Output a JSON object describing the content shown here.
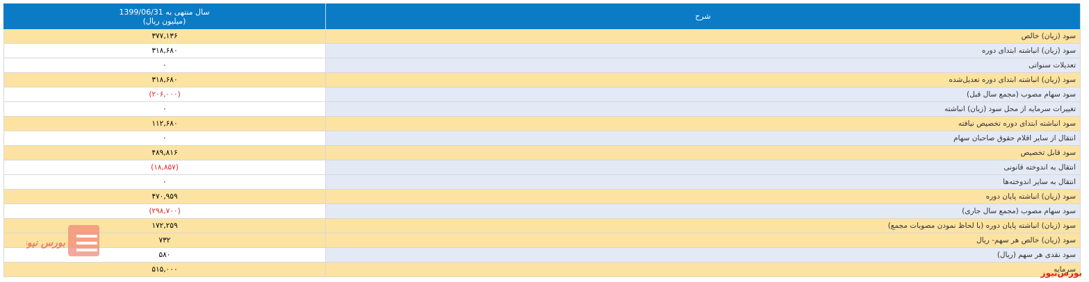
{
  "header": {
    "period": "سال منتهی به 1399/06/31",
    "unit": "(میلیون ریال)",
    "description": "شرح"
  },
  "table": {
    "rows": [
      {
        "value": "۳۷۷,۱۳۶",
        "label": "سود (زیان) خالص",
        "highlight": true
      },
      {
        "value": "۳۱۸,۶۸۰",
        "label": "سود (زیان) انباشته ابتدای دوره",
        "highlight": false
      },
      {
        "value": "۰",
        "label": "تعدیلات سنواتی",
        "highlight": false
      },
      {
        "value": "۳۱۸,۶۸۰",
        "label": "سود (زیان) انباشته ابتدای دوره تعدیل‌شده",
        "highlight": true
      },
      {
        "value": "(۲۰۶,۰۰۰)",
        "label": "سود سهام مصوب (مجمع سال قبل)",
        "highlight": false
      },
      {
        "value": "۰",
        "label": "تغییرات سرمایه از محل سود (زیان) انباشته",
        "highlight": false
      },
      {
        "value": "۱۱۲,۶۸۰",
        "label": "سود انباشته ابتدای دوره تخصیص نیافته",
        "highlight": true
      },
      {
        "value": "۰",
        "label": "انتقال از سایر اقلام حقوق صاحبان سهام",
        "highlight": false
      },
      {
        "value": "۴۸۹,۸۱۶",
        "label": "سود قابل تخصیص",
        "highlight": true
      },
      {
        "value": "(۱۸,۸۵۷)",
        "label": "انتقال به اندوخته قانونی",
        "highlight": false
      },
      {
        "value": "۰",
        "label": "انتقال به سایر اندوخته‌ها",
        "highlight": false
      },
      {
        "value": "۴۷۰,۹۵۹",
        "label": "سود (زیان) انباشته پایان دوره",
        "highlight": true
      },
      {
        "value": "(۲۹۸,۷۰۰)",
        "label": "سود سهام مصوب (مجمع سال جاری)",
        "highlight": false
      },
      {
        "value": "۱۷۲,۲۵۹",
        "label": "سود (زیان) انباشته پایان دوره (با لحاظ نمودن مصوبات مجمع)",
        "highlight": true
      },
      {
        "value": "۷۳۲",
        "label": "سود (زیان) خالص هر سهم- ریال",
        "highlight": true
      },
      {
        "value": "۵۸۰",
        "label": "سود نقدی هر سهم (ریال)",
        "highlight": false
      },
      {
        "value": "۵۱۵,۰۰۰",
        "label": "سرمایه",
        "highlight": true
      }
    ]
  },
  "watermark": {
    "logo_text": "بورس نیوز",
    "corner_text": "بورس‌نیوز"
  }
}
